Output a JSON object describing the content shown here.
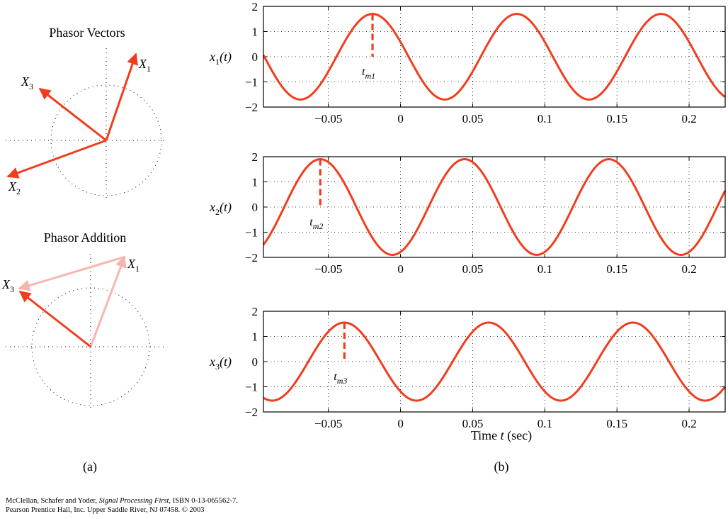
{
  "left_panel": {
    "vectors_title": "Phasor Vectors",
    "addition_title": "Phasor Addition",
    "labels": {
      "x1": "X",
      "x1_sub": "1",
      "x2": "X",
      "x2_sub": "2",
      "x3": "X",
      "x3_sub": "3"
    },
    "caption": "(a)"
  },
  "right_panel": {
    "caption": "(b)",
    "xlabel": "Time t (sec)",
    "xlim": [
      -0.095,
      0.225
    ],
    "ylim": [
      -2,
      2
    ],
    "xticks": [
      -0.05,
      0,
      0.05,
      0.1,
      0.15,
      0.2
    ],
    "xtick_labels": [
      "−0.05",
      "0",
      "0.05",
      "0.1",
      "0.15",
      "0.2"
    ],
    "yticks": [
      -2,
      -1,
      0,
      1,
      2
    ],
    "ytick_labels": [
      "−2",
      "−1",
      "0",
      "1",
      "2"
    ]
  },
  "chart_data": [
    {
      "type": "line",
      "ylabel": "x1(t)",
      "amplitude": 1.7,
      "period": 0.1,
      "peak_time": -0.0194,
      "marker": {
        "label": "t",
        "label_sub": "m1",
        "x": -0.0194
      }
    },
    {
      "type": "line",
      "ylabel": "x2(t)",
      "amplitude": 1.9,
      "period": 0.1,
      "peak_time": -0.0556,
      "marker": {
        "label": "t",
        "label_sub": "m2",
        "x": -0.0556
      }
    },
    {
      "type": "line",
      "ylabel": "x3(t)",
      "amplitude": 1.55,
      "period": 0.1,
      "peak_time": -0.0389,
      "marker": {
        "label": "t",
        "label_sub": "m3",
        "x": -0.0389
      }
    }
  ],
  "credit": {
    "authors": "McClellan, Schafer and Yoder, ",
    "book": "Signal Processing First,",
    "isbn": " ISBN 0-13-065562-7.",
    "line2": "Pearson Prentice Hall, Inc. Upper Saddle River, NJ 07458. © 2003"
  },
  "colors": {
    "curve": "#f23c1e",
    "faded": "#f7b6ad"
  }
}
